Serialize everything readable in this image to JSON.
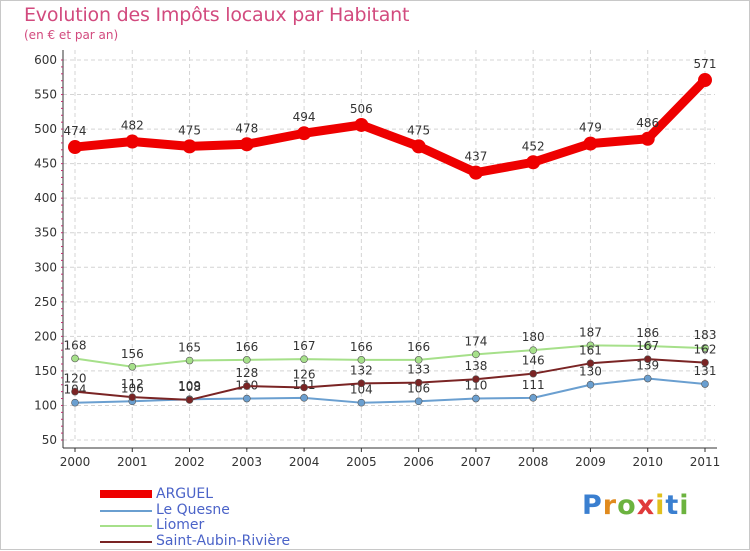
{
  "header": {
    "title": "Evolution des Impôts locaux par Habitant",
    "subtitle": "(en € et par an)"
  },
  "chart_data": {
    "type": "line",
    "x": [
      "2000",
      "2001",
      "2002",
      "2003",
      "2004",
      "2005",
      "2006",
      "2007",
      "2008",
      "2009",
      "2010",
      "2011"
    ],
    "ylim": [
      50,
      600
    ],
    "yticks": [
      50,
      100,
      150,
      200,
      250,
      300,
      350,
      400,
      450,
      500,
      550,
      600
    ],
    "grid": true,
    "legend_position": "bottom-left",
    "series": [
      {
        "name": "ARGUEL",
        "color": "#ee0000",
        "values": [
          474,
          482,
          475,
          478,
          494,
          506,
          475,
          437,
          452,
          479,
          486,
          571
        ],
        "labels": [
          "474",
          "482",
          "475",
          "478",
          "494",
          "506",
          "475",
          "437",
          "452",
          "479",
          "486",
          "571"
        ]
      },
      {
        "name": "Le Quesne",
        "color": "#6a9fd0",
        "values": [
          104,
          106,
          109,
          110,
          111,
          104,
          106,
          110,
          111,
          130,
          139,
          131
        ],
        "labels": [
          "104",
          "106",
          "109",
          "110",
          "111",
          "104",
          "106",
          "110",
          "111",
          "130",
          "139",
          "131"
        ]
      },
      {
        "name": "Liomer",
        "color": "#a6e08a",
        "values": [
          168,
          156,
          165,
          166,
          167,
          166,
          166,
          174,
          180,
          187,
          186,
          183
        ],
        "labels": [
          "168",
          "156",
          "165",
          "166",
          "167",
          "166",
          "166",
          "174",
          "180",
          "187",
          "186",
          "183"
        ]
      },
      {
        "name": "Saint-Aubin-Rivière",
        "color": "#7a2424",
        "values": [
          120,
          112,
          108,
          128,
          126,
          132,
          133,
          138,
          146,
          161,
          167,
          162
        ],
        "labels": [
          "120",
          "112",
          "108",
          "128",
          "126",
          "132",
          "133",
          "138",
          "146",
          "161",
          "167",
          "162"
        ]
      }
    ]
  },
  "logo": {
    "text": "Proxiti",
    "letter_colors": [
      "#3a7fd0",
      "#e08a1e",
      "#6cb33f",
      "#e03a3a",
      "#e0c01e",
      "#3a7fd0",
      "#6cb33f"
    ]
  }
}
